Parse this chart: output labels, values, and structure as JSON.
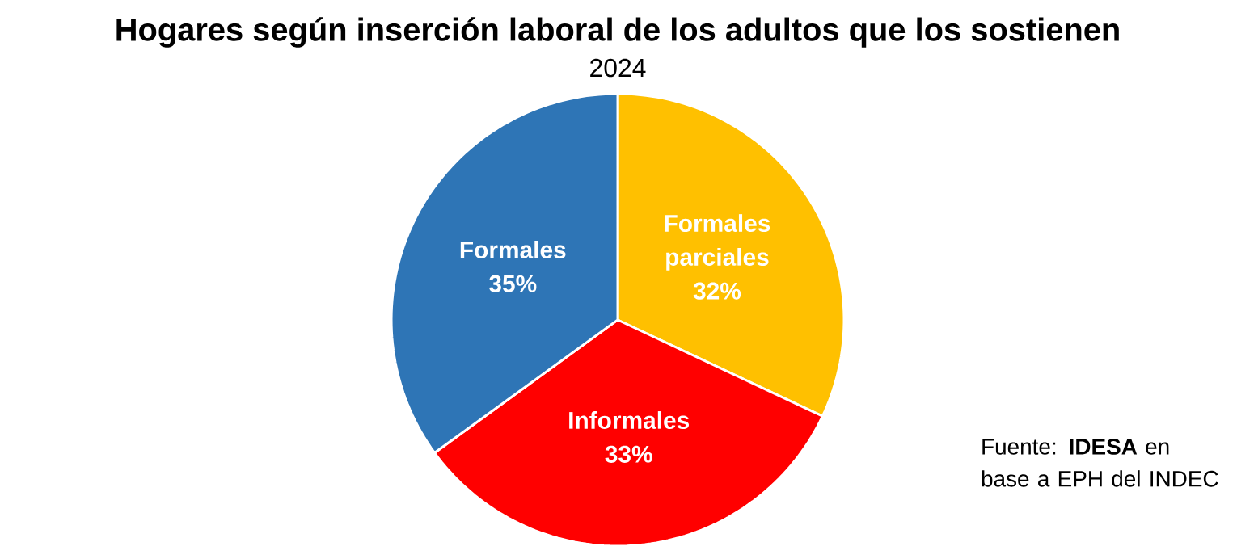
{
  "chart_data": {
    "type": "pie",
    "title": "Hogares según inserción laboral de los adultos que los sostienen",
    "subtitle": "2024",
    "categories": [
      "Formales parciales",
      "Informales",
      "Formales"
    ],
    "values": [
      32,
      33,
      35
    ],
    "colors": [
      "#ffc000",
      "#ff0000",
      "#2e75b6"
    ],
    "value_labels": [
      "32%",
      "33%",
      "35%"
    ],
    "annotations": [
      "Fuente: **IDESA** en base a EPH del INDEC"
    ]
  }
}
